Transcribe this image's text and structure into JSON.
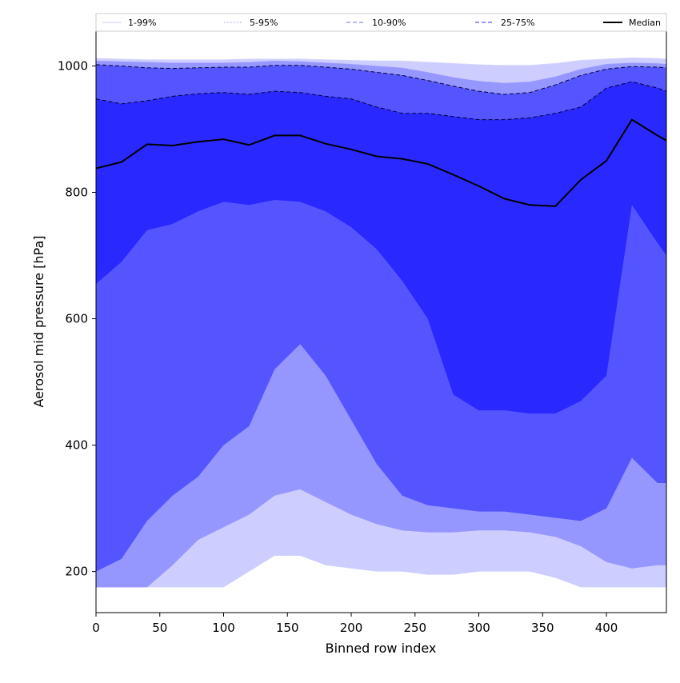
{
  "chart_data": {
    "type": "area",
    "title": "",
    "xlabel": "Binned row index",
    "ylabel": "Aerosol mid pressure [hPa]",
    "xlim": [
      0,
      447
    ],
    "ylim": [
      135,
      1055
    ],
    "x_ticks": [
      0,
      50,
      100,
      150,
      200,
      250,
      300,
      350,
      400
    ],
    "y_ticks": [
      200,
      400,
      600,
      800,
      1000
    ],
    "grid": false,
    "legend_position": "top",
    "legend": [
      {
        "label": "1-99%",
        "color": "#d8d8ff",
        "style": "solid"
      },
      {
        "label": "5-95%",
        "color": "#a8a8ff",
        "style": "dotted"
      },
      {
        "label": "10-90%",
        "color": "#8a8aff",
        "style": "dashed"
      },
      {
        "label": "25-75%",
        "color": "#5555ff",
        "style": "dashed"
      },
      {
        "label": "Median",
        "color": "#000000",
        "style": "solid"
      }
    ],
    "x": [
      0,
      20,
      40,
      60,
      80,
      100,
      120,
      140,
      160,
      180,
      200,
      220,
      240,
      260,
      280,
      300,
      320,
      340,
      360,
      380,
      400,
      420,
      440,
      447
    ],
    "bands": [
      {
        "name": "1-99%",
        "color": "#cdcdff",
        "lower": [
          175,
          175,
          175,
          175,
          175,
          175,
          200,
          225,
          225,
          210,
          205,
          200,
          200,
          195,
          195,
          200,
          200,
          200,
          190,
          175,
          175,
          175,
          175,
          175
        ],
        "upper": [
          1012,
          1011,
          1010,
          1010,
          1010,
          1010,
          1011,
          1011,
          1011,
          1010,
          1009,
          1008,
          1008,
          1006,
          1004,
          1002,
          1001,
          1001,
          1004,
          1009,
          1011,
          1013,
          1012,
          1011
        ]
      },
      {
        "name": "5-95%",
        "color": "#9696ff",
        "lower": [
          175,
          175,
          175,
          210,
          250,
          270,
          290,
          320,
          330,
          310,
          290,
          275,
          265,
          262,
          262,
          265,
          265,
          262,
          255,
          240,
          215,
          205,
          210,
          210
        ],
        "upper": [
          1008,
          1007,
          1006,
          1005,
          1005,
          1005,
          1006,
          1008,
          1007,
          1005,
          1003,
          1000,
          997,
          990,
          982,
          976,
          973,
          975,
          983,
          995,
          1003,
          1005,
          1004,
          1003
        ]
      },
      {
        "name": "10-90%",
        "color": "#5555ff",
        "lower": [
          200,
          220,
          280,
          320,
          350,
          400,
          430,
          520,
          560,
          510,
          440,
          370,
          320,
          305,
          300,
          295,
          295,
          290,
          285,
          280,
          300,
          380,
          340,
          340
        ],
        "upper": [
          1002,
          1000,
          997,
          996,
          997,
          998,
          998,
          1001,
          1001,
          998,
          995,
          990,
          985,
          977,
          968,
          960,
          955,
          958,
          970,
          985,
          995,
          999,
          998,
          997
        ]
      },
      {
        "name": "25-75%",
        "color": "#2828ff",
        "lower": [
          655,
          690,
          740,
          750,
          770,
          785,
          780,
          788,
          785,
          770,
          745,
          710,
          660,
          600,
          480,
          455,
          455,
          450,
          450,
          470,
          510,
          780,
          720,
          700
        ],
        "upper": [
          948,
          940,
          945,
          952,
          956,
          958,
          955,
          960,
          958,
          952,
          948,
          935,
          925,
          925,
          920,
          915,
          915,
          918,
          925,
          935,
          965,
          975,
          965,
          960
        ]
      }
    ],
    "median": [
      838,
      848,
      876,
      874,
      880,
      884,
      875,
      890,
      890,
      877,
      868,
      857,
      853,
      845,
      828,
      810,
      790,
      780,
      778,
      820,
      850,
      915,
      890,
      882
    ]
  }
}
